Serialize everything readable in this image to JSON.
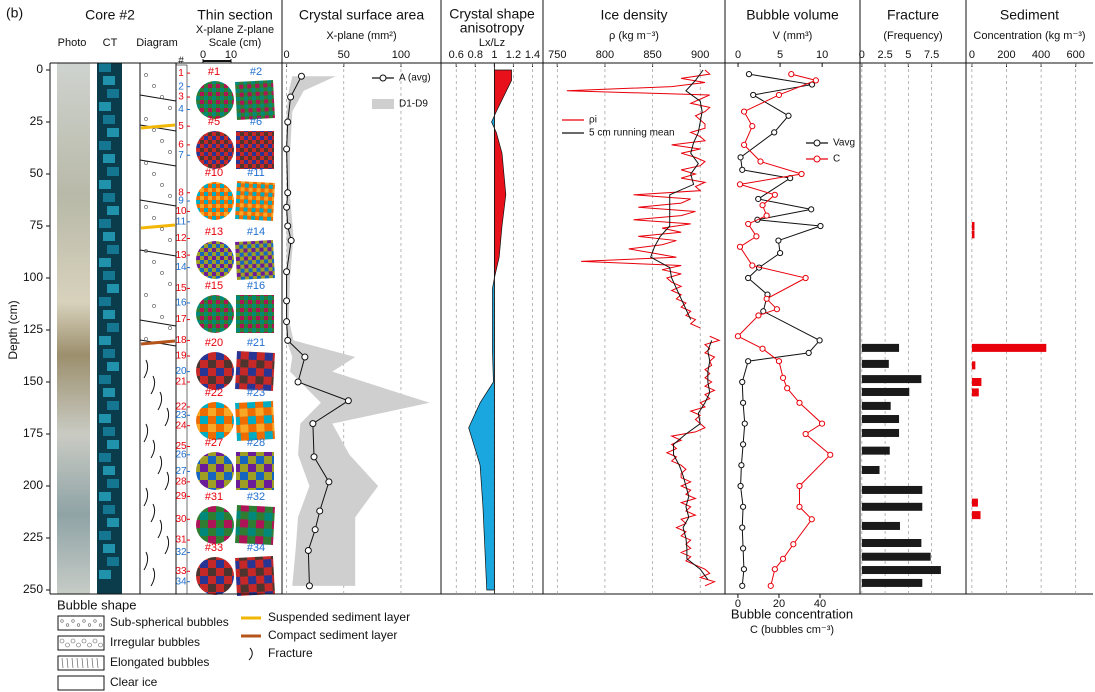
{
  "figure_label": "(b)",
  "chart_data": [
    {
      "type": "core",
      "title": "Core #2",
      "columns": [
        "Photo",
        "CT",
        "Diagram"
      ],
      "ylabel": "Depth (cm)",
      "ylim": [
        0,
        250
      ],
      "yticks": [
        0,
        25,
        50,
        75,
        100,
        125,
        150,
        175,
        200,
        225,
        250
      ],
      "legend": {
        "title": "Bubble shape",
        "items": [
          "Sub-spherical bubbles",
          "Irregular bubbles",
          "Elongated bubbles",
          "Clear ice"
        ],
        "lines": [
          {
            "label": "Suspended sediment layer",
            "color": "#f2b705"
          },
          {
            "label": "Compact sediment layer",
            "color": "#b5541b"
          },
          {
            "label": "Fracture",
            "color": "#111111"
          }
        ]
      }
    },
    {
      "type": "thin_section",
      "title": "Thin section",
      "subtitle": "X-plane Z-plane",
      "scale_label": "Scale (cm)",
      "scale_ticks": [
        0,
        10
      ],
      "number_header": "#",
      "plane_colors": [
        "#e8000b",
        "#1f6fd0"
      ],
      "samples": {
        "labels": [
          "1",
          "2",
          "3",
          "4",
          "5",
          "6",
          "7",
          "8",
          "9",
          "10",
          "11",
          "12",
          "13",
          "14",
          "15",
          "16",
          "17",
          "18",
          "19",
          "20",
          "21",
          "22",
          "23",
          "24",
          "25",
          "26",
          "27",
          "28",
          "29",
          "30",
          "31",
          "32",
          "33",
          "34"
        ],
        "depth": [
          1.5,
          8,
          13,
          19,
          27,
          36,
          41,
          59,
          63,
          68,
          73,
          81,
          89,
          95,
          105,
          112,
          120,
          130,
          137.5,
          145,
          150,
          162,
          166,
          171,
          181,
          185,
          193,
          198,
          205,
          216,
          226,
          232,
          241,
          246
        ],
        "colors": [
          "#e8000b",
          "#1f6fd0",
          "#e8000b",
          "#1f6fd0",
          "#e8000b",
          "#e8000b",
          "#1f6fd0",
          "#e8000b",
          "#1f6fd0",
          "#e8000b",
          "#1f6fd0",
          "#e8000b",
          "#e8000b",
          "#1f6fd0",
          "#e8000b",
          "#1f6fd0",
          "#e8000b",
          "#e8000b",
          "#e8000b",
          "#1f6fd0",
          "#e8000b",
          "#e8000b",
          "#1f6fd0",
          "#e8000b",
          "#e8000b",
          "#1f6fd0",
          "#1f6fd0",
          "#e8000b",
          "#e8000b",
          "#e8000b",
          "#e8000b",
          "#1f6fd0",
          "#e8000b",
          "#1f6fd0"
        ]
      },
      "images": [
        [
          "#1",
          "#2"
        ],
        [
          "#5",
          "#6"
        ],
        [
          "#10",
          "#11"
        ],
        [
          "#13",
          "#14"
        ],
        [
          "#15",
          "#16"
        ],
        [
          "#20",
          "#21"
        ],
        [
          "#22",
          "#23"
        ],
        [
          "#27",
          "#28"
        ],
        [
          "#31",
          "#32"
        ],
        [
          "#33",
          "#34"
        ]
      ]
    },
    {
      "type": "line",
      "title": "Crystal surface area",
      "xlabel": "X-plane (mm²)",
      "xlim": [
        -4,
        135
      ],
      "xticks": [
        0,
        50,
        100
      ],
      "grid": true,
      "series": [
        {
          "name": "A (avg)",
          "color": "#111111",
          "marker": "circle",
          "depth": [
            3,
            13,
            25,
            38,
            59,
            66,
            75,
            82,
            97,
            111,
            121,
            130,
            138,
            150,
            159,
            170,
            186,
            198,
            212,
            221,
            231,
            248
          ],
          "values": [
            13,
            3.5,
            1,
            0,
            1,
            0,
            1,
            4,
            0,
            0,
            0,
            1,
            16,
            10,
            54,
            23,
            24,
            37,
            29,
            25,
            19,
            20
          ]
        }
      ],
      "band": {
        "name": "D1-D9",
        "color": "#cfcfcf",
        "depth": [
          3,
          10,
          20,
          40,
          60,
          80,
          100,
          120,
          130,
          138,
          145,
          160,
          170,
          185,
          200,
          215,
          230,
          248
        ],
        "low": [
          5,
          2,
          0,
          0,
          0,
          0,
          0,
          0,
          0,
          5,
          3,
          30,
          12,
          10,
          20,
          10,
          8,
          5
        ],
        "high": [
          43,
          15,
          5,
          3,
          3,
          6,
          3,
          2,
          6,
          60,
          40,
          125,
          40,
          55,
          80,
          60,
          60,
          60
        ]
      }
    },
    {
      "type": "area",
      "title_lines": [
        "Crystal shape",
        "anisotropy"
      ],
      "xlabel": "Lx/Lz",
      "xlim": [
        0.44,
        1.51
      ],
      "xticks": [
        0.6,
        0.8,
        1,
        1.2,
        1.4
      ],
      "grid": true,
      "threshold": 1,
      "colors": {
        "above": "#e8101b",
        "below": "#1aa6de"
      },
      "depth": [
        0,
        5,
        20,
        25,
        30,
        40,
        60,
        75,
        90,
        100,
        105,
        120,
        135,
        150,
        160,
        172,
        190,
        210,
        230,
        250
      ],
      "values": [
        1.18,
        1.18,
        1.02,
        0.97,
        1.02,
        1.08,
        1.12,
        1.08,
        1.05,
        1.0,
        0.98,
        0.98,
        0.98,
        0.99,
        0.85,
        0.73,
        0.85,
        0.88,
        0.9,
        0.92
      ]
    },
    {
      "type": "line",
      "title": "Ice density",
      "xlabel": "ρ (kg m⁻³)",
      "xlim": [
        735,
        926
      ],
      "xticks": [
        750,
        800,
        850,
        900
      ],
      "grid": true,
      "series": [
        {
          "name": "ρi",
          "color": "#e8000b",
          "depth": [
            0,
            2,
            4,
            6,
            8,
            10,
            12,
            14,
            16,
            18,
            20,
            22,
            24,
            26,
            28,
            30,
            32,
            34,
            36,
            38,
            40,
            42,
            44,
            46,
            48,
            50,
            52,
            54,
            56,
            58,
            60,
            62,
            64,
            66,
            68,
            70,
            72,
            74,
            76,
            78,
            80,
            82,
            84,
            86,
            88,
            90,
            92,
            94,
            96,
            98,
            100,
            102,
            104,
            106,
            108,
            110,
            112,
            114,
            116,
            118,
            120,
            122,
            124,
            126,
            128,
            130,
            132,
            134,
            136,
            138,
            140,
            142,
            144,
            146,
            148,
            150,
            152,
            154,
            156,
            158,
            160,
            162,
            164,
            166,
            168,
            170,
            172,
            174,
            176,
            178,
            180,
            182,
            184,
            186,
            188,
            190,
            192,
            194,
            196,
            198,
            200,
            202,
            204,
            206,
            208,
            210,
            212,
            214,
            216,
            218,
            220,
            222,
            224,
            226,
            228,
            230,
            232,
            234,
            236,
            238,
            240,
            242,
            244,
            246,
            248
          ],
          "values": [
            905,
            910,
            880,
            905,
            870,
            760,
            910,
            900,
            890,
            910,
            905,
            895,
            900,
            905,
            905,
            890,
            900,
            905,
            870,
            900,
            880,
            895,
            905,
            900,
            880,
            895,
            880,
            905,
            895,
            900,
            830,
            890,
            880,
            835,
            895,
            880,
            830,
            890,
            860,
            880,
            835,
            875,
            860,
            825,
            850,
            875,
            775,
            880,
            860,
            880,
            865,
            870,
            880,
            870,
            880,
            875,
            885,
            880,
            890,
            885,
            895,
            890,
            900,
            null,
            910,
            920,
            905,
            910,
            905,
            915,
            910,
            912,
            905,
            910,
            905,
            912,
            905,
            915,
            905,
            910,
            900,
            905,
            890,
            900,
            895,
            900,
            905,
            895,
            870,
            880,
            870,
            875,
            865,
            875,
            870,
            880,
            885,
            880,
            880,
            890,
            880,
            890,
            885,
            895,
            880,
            890,
            885,
            895,
            880,
            885,
            875,
            885,
            880,
            890,
            885,
            890,
            880,
            890,
            885,
            895,
            905,
            910,
            900,
            915,
            905
          ]
        },
        {
          "name": "5 cm running mean",
          "color": "#111111",
          "depth": [
            0,
            5,
            10,
            15,
            20,
            25,
            30,
            35,
            40,
            45,
            50,
            55,
            60,
            65,
            70,
            75,
            80,
            85,
            90,
            95,
            100,
            105,
            110,
            115,
            120,
            125,
            130,
            135,
            140,
            145,
            150,
            155,
            160,
            165,
            170,
            175,
            180,
            185,
            190,
            195,
            200,
            205,
            210,
            215,
            220,
            225,
            230,
            235,
            240,
            245
          ],
          "values": [
            903,
            895,
            885,
            900,
            902,
            900,
            898,
            893,
            890,
            898,
            890,
            893,
            868,
            868,
            868,
            868,
            858,
            852,
            848,
            868,
            870,
            875,
            880,
            885,
            890,
            null,
            912,
            908,
            910,
            908,
            908,
            910,
            905,
            898,
            900,
            885,
            872,
            872,
            878,
            882,
            885,
            888,
            885,
            888,
            882,
            885,
            886,
            886,
            900,
            908
          ]
        }
      ]
    },
    {
      "type": "dual_line",
      "title": "Bubble volume",
      "xlabel": "V (mm³)",
      "xlim": [
        -1.55,
        14.5
      ],
      "xticks": [
        0,
        5,
        10
      ],
      "x2label_lines": [
        "Bubble concentration",
        "C (bubbles cm⁻³)"
      ],
      "x2lim": [
        -6.3,
        59.5
      ],
      "x2ticks": [
        0,
        20,
        40
      ],
      "series": [
        {
          "name": "Vavg",
          "color": "#111111",
          "axis": "x",
          "marker": "circle",
          "depth": [
            2,
            7,
            12,
            22,
            30,
            42,
            48,
            52,
            62,
            67,
            72,
            75,
            82,
            88,
            95,
            100,
            108,
            116,
            130,
            136,
            140,
            150,
            160,
            170,
            180,
            190,
            200,
            210,
            220,
            230,
            240,
            248
          ],
          "values": [
            1.3,
            8.8,
            1.8,
            6.0,
            4.3,
            0.3,
            0.5,
            6.2,
            2.4,
            8.7,
            2.3,
            9.8,
            4.8,
            5.0,
            2.5,
            1.2,
            3.5,
            3.0,
            9.7,
            8.4,
            1.2,
            0.5,
            0.6,
            0.8,
            0.6,
            0.4,
            0.3,
            0.6,
            0.5,
            0.6,
            0.7,
            0.5
          ]
        },
        {
          "name": "C",
          "color": "#e8000b",
          "axis": "x2",
          "marker": "circle",
          "depth": [
            2,
            5,
            12,
            20,
            27,
            36,
            44,
            50,
            55,
            60,
            65,
            70,
            74,
            80,
            85,
            94,
            100,
            110,
            115,
            118,
            128,
            134,
            140,
            148,
            153,
            160,
            170,
            175,
            185,
            200,
            210,
            216,
            228,
            235,
            240,
            248
          ],
          "values": [
            26,
            38,
            20,
            3,
            7,
            3,
            11,
            31,
            1,
            18,
            12,
            14,
            5,
            9,
            1,
            7,
            33,
            14,
            19,
            10,
            0,
            12,
            20,
            22,
            24,
            30,
            41,
            33,
            45,
            30,
            30,
            36,
            27,
            22,
            18,
            16
          ]
        }
      ]
    },
    {
      "type": "barh",
      "title": "Fracture",
      "xlabel": "(Frequency)",
      "xlim": [
        -0.2,
        11.2
      ],
      "xticks": [
        0,
        2.5,
        5,
        7.5
      ],
      "grid": true,
      "color": "#1a1a1a",
      "depth": [
        133.6,
        141.3,
        148.6,
        154.8,
        161.5,
        167.8,
        174.5,
        183,
        192.3,
        201.9,
        210,
        219.2,
        227.4,
        234,
        240.4,
        246.6
      ],
      "values": [
        4.0,
        2.9,
        6.4,
        5.1,
        3.1,
        4.0,
        4.0,
        3.0,
        1.9,
        6.5,
        6.5,
        4.1,
        6.4,
        7.4,
        8.5,
        6.5
      ]
    },
    {
      "type": "barh",
      "title": "Sediment",
      "xlabel": "Concentration (kg m⁻³)",
      "xlim": [
        -34,
        700
      ],
      "xticks": [
        0,
        200,
        400,
        600
      ],
      "grid": true,
      "color": "#e8000b",
      "depth": [
        75,
        79,
        133.6,
        142,
        150,
        155,
        208,
        214
      ],
      "values": [
        15,
        15,
        430,
        20,
        55,
        40,
        35,
        50
      ]
    }
  ]
}
